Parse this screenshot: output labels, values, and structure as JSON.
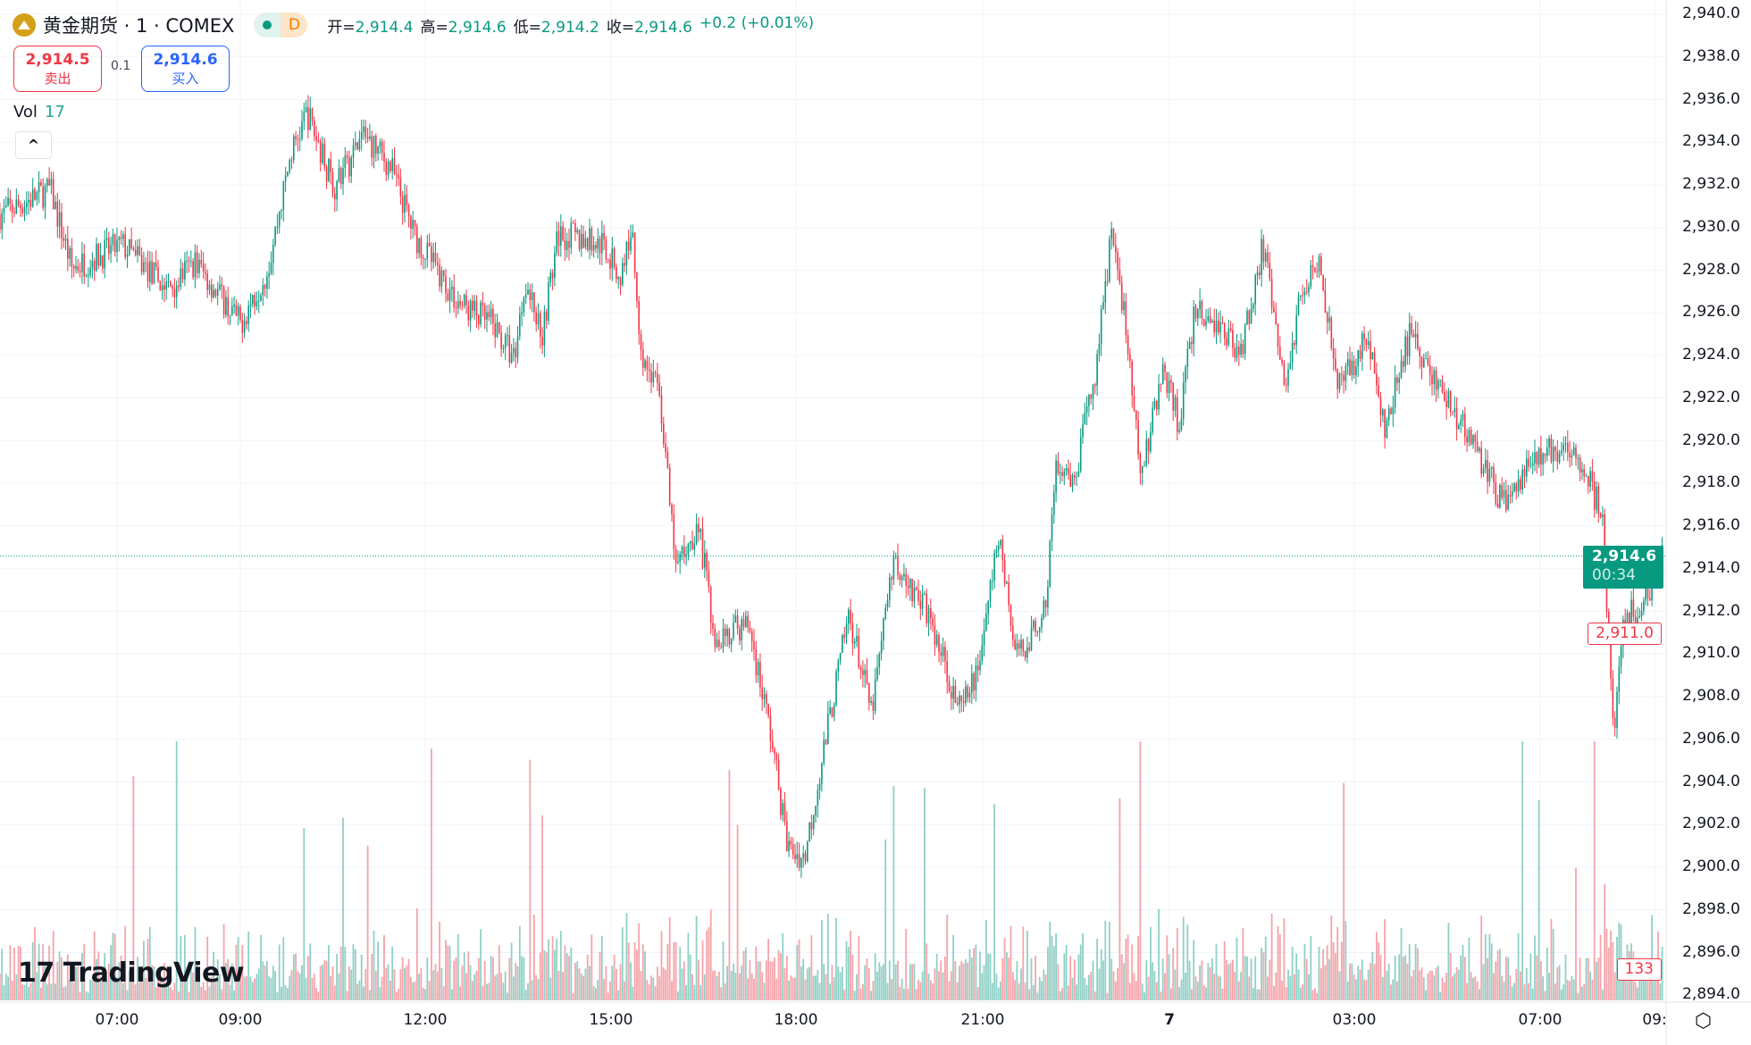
{
  "header": {
    "symbol": "黄金期货 · 1 · COMEX",
    "interval_badge": "D",
    "market_status_icon": "market-open-dot",
    "ohlc": [
      {
        "label": "开=",
        "value": "2,914.4"
      },
      {
        "label": "高=",
        "value": "2,914.6"
      },
      {
        "label": "低=",
        "value": "2,914.2"
      },
      {
        "label": "收=",
        "value": "2,914.6"
      }
    ],
    "change": "+0.2 (+0.01%)"
  },
  "trade": {
    "sell_price": "2,914.5",
    "sell_label": "卖出",
    "spread": "0.1",
    "buy_price": "2,914.6",
    "buy_label": "买入"
  },
  "volume_legend": {
    "label": "Vol",
    "value": "17"
  },
  "logo": "TradingView",
  "current_price": {
    "price": "2,914.6",
    "countdown": "00:34"
  },
  "marker_price": "2,911.0",
  "volume_marker": "133",
  "colors": {
    "up": "#089981",
    "down": "#f23645",
    "vol_up": "#8fd0c6",
    "vol_down": "#f5a4aa"
  },
  "chart_data": {
    "type": "candlestick",
    "y_axis": {
      "ticks": [
        "2,940.0",
        "2,938.0",
        "2,936.0",
        "2,934.0",
        "2,932.0",
        "2,930.0",
        "2,928.0",
        "2,926.0",
        "2,924.0",
        "2,922.0",
        "2,920.0",
        "2,918.0",
        "2,916.0",
        "2,914.0",
        "2,912.0",
        "2,910.0",
        "2,908.0",
        "2,906.0",
        "2,904.0",
        "2,902.0",
        "2,900.0",
        "2,898.0",
        "2,896.0",
        "2,894.0"
      ],
      "range": [
        2894,
        2940
      ]
    },
    "x_axis": {
      "ticks": [
        "07:00",
        "09:00",
        "12:00",
        "15:00",
        "18:00",
        "21:00",
        "7",
        "03:00",
        "07:00",
        "09:"
      ]
    },
    "grid": true,
    "price_path": [
      [
        "05:06",
        2930.6
      ],
      [
        "05:55",
        2931.8
      ],
      [
        "06:16",
        2928.1
      ],
      [
        "07:05",
        2929.2
      ],
      [
        "07:49",
        2927.1
      ],
      [
        "08:16",
        2928.4
      ],
      [
        "09:00",
        2925.5
      ],
      [
        "09:27",
        2928.1
      ],
      [
        "09:49",
        2933.4
      ],
      [
        "10:05",
        2935.4
      ],
      [
        "10:32",
        2931.8
      ],
      [
        "11:00",
        2934.4
      ],
      [
        "11:27",
        2932.8
      ],
      [
        "11:49",
        2929.7
      ],
      [
        "12:31",
        2926.5
      ],
      [
        "13:04",
        2925.5
      ],
      [
        "13:26",
        2923.9
      ],
      [
        "13:37",
        2927.6
      ],
      [
        "13:53",
        2925.0
      ],
      [
        "14:09",
        2929.7
      ],
      [
        "14:53",
        2929.2
      ],
      [
        "15:09",
        2927.6
      ],
      [
        "15:20",
        2930.0
      ],
      [
        "15:30",
        2923.9
      ],
      [
        "15:47",
        2922.4
      ],
      [
        "16:03",
        2914.0
      ],
      [
        "16:25",
        2916.1
      ],
      [
        "16:41",
        2910.8
      ],
      [
        "17:14",
        2911.4
      ],
      [
        "17:36",
        2906.1
      ],
      [
        "17:52",
        2900.9
      ],
      [
        "18:08",
        2900.4
      ],
      [
        "18:29",
        2906.1
      ],
      [
        "18:51",
        2911.9
      ],
      [
        "19:13",
        2907.2
      ],
      [
        "19:34",
        2914.5
      ],
      [
        "20:07",
        2911.9
      ],
      [
        "20:39",
        2907.2
      ],
      [
        "20:55",
        2909.3
      ],
      [
        "21:16",
        2915.6
      ],
      [
        "21:32",
        2909.8
      ],
      [
        "22:00",
        2911.9
      ],
      [
        "22:10",
        2918.7
      ],
      [
        "22:27",
        2917.7
      ],
      [
        "22:49",
        2923.4
      ],
      [
        "23:05",
        2930.2
      ],
      [
        "23:21",
        2924.0
      ],
      [
        "23:32",
        2918.2
      ],
      [
        "23:54",
        2923.4
      ],
      [
        "00:09",
        2920.8
      ],
      [
        "00:25",
        2926.1
      ],
      [
        "00:58",
        2925.0
      ],
      [
        "01:09",
        2924.0
      ],
      [
        "01:31",
        2929.2
      ],
      [
        "01:52",
        2922.4
      ],
      [
        "02:09",
        2927.1
      ],
      [
        "02:25",
        2928.7
      ],
      [
        "02:46",
        2922.4
      ],
      [
        "03:17",
        2925.0
      ],
      [
        "03:39",
        2920.3
      ],
      [
        "04:11",
        2925.0
      ],
      [
        "04:51",
        2922.4
      ],
      [
        "05:35",
        2919.7
      ],
      [
        "06:11",
        2917.1
      ],
      [
        "07:07",
        2919.7
      ],
      [
        "07:36",
        2919.7
      ],
      [
        "08:05",
        2916.6
      ],
      [
        "08:17",
        2906.1
      ],
      [
        "08:28",
        2911.4
      ],
      [
        "08:52",
        2912.9
      ],
      [
        "09:09",
        2914.6
      ]
    ]
  }
}
